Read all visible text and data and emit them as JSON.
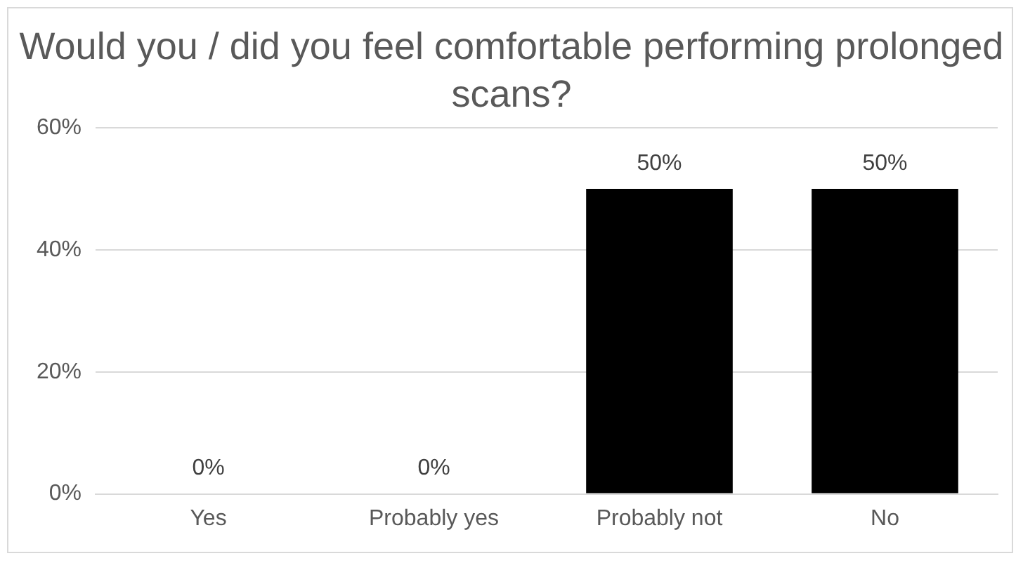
{
  "chart_data": {
    "type": "bar",
    "title": "Would you / did you feel comfortable performing prolonged scans?",
    "categories": [
      "Yes",
      "Probably yes",
      "Probably not",
      "No"
    ],
    "values": [
      0,
      0,
      50,
      50
    ],
    "color": "#000000",
    "value_labels": [
      "0%",
      "0%",
      "50%",
      "50%"
    ],
    "ylim": [
      0,
      60
    ],
    "yticks": [
      {
        "value": 0,
        "label": "0%"
      },
      {
        "value": 20,
        "label": "20%"
      },
      {
        "value": 40,
        "label": "40%"
      },
      {
        "value": 60,
        "label": "60%"
      }
    ],
    "grid": "y",
    "legend": false
  }
}
